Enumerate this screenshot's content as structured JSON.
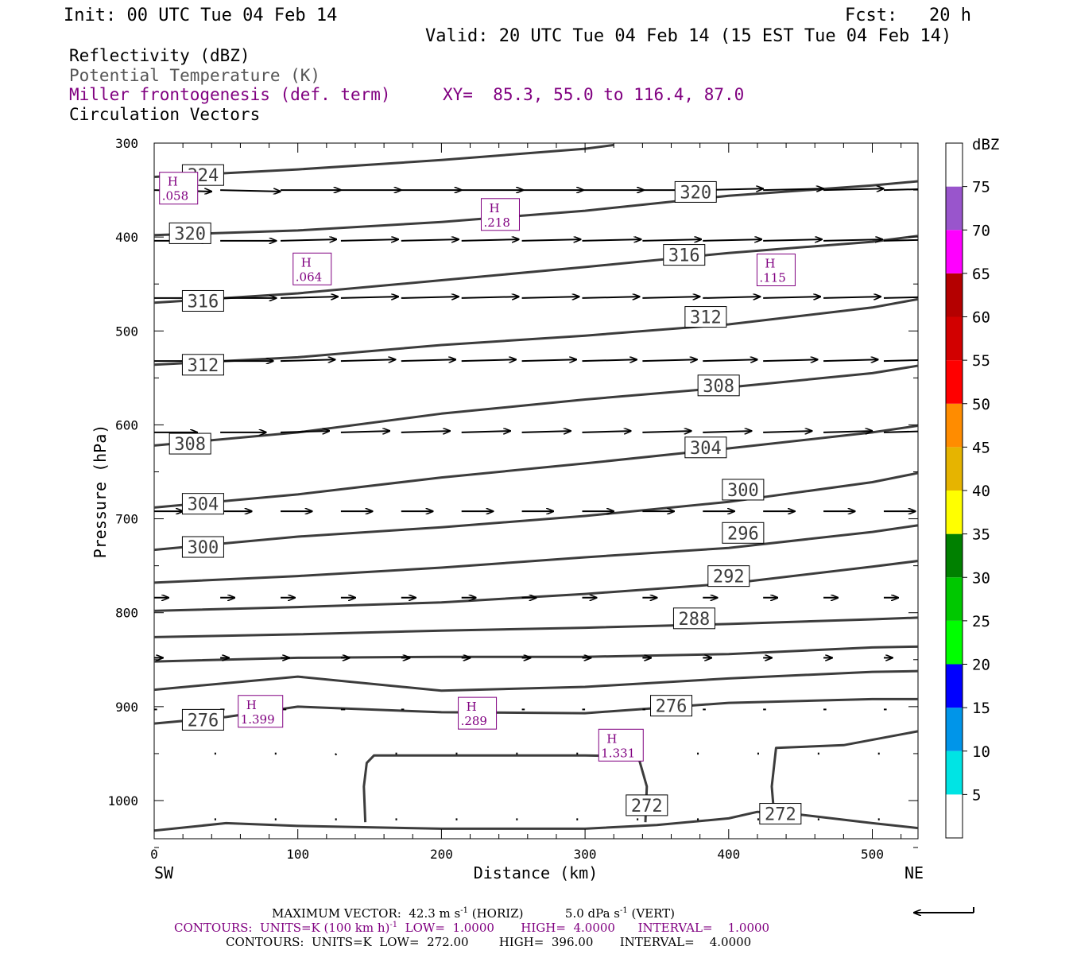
{
  "header": {
    "init": "Init: 00 UTC Tue 04 Feb 14",
    "fcst": "Fcst:   20 h",
    "valid": "Valid: 20 UTC Tue 04 Feb 14 (15 EST Tue 04 Feb 14)",
    "field1": "Reflectivity (dBZ)",
    "field2": "Potential Temperature (K)",
    "field3": "Miller frontogenesis (def. term)",
    "xy": "XY=  85.3, 55.0 to 116.4, 87.0",
    "field4": "Circulation Vectors"
  },
  "colors": {
    "purple": "#800080",
    "gray_text": "#555555",
    "theta_line": "#3c3c3c"
  },
  "chart_data": {
    "type": "line",
    "title": "",
    "xlabel": "Distance (km)",
    "ylabel": "Pressure (hPa)",
    "xlim": [
      0,
      536
    ],
    "ylim": [
      1040,
      300
    ],
    "x_ticks": [
      0,
      100,
      200,
      300,
      400,
      500
    ],
    "y_ticks": [
      300,
      400,
      500,
      600,
      700,
      800,
      900,
      1000
    ],
    "x_end_labels": {
      "left": "SW",
      "right": "NE"
    },
    "series": [
      {
        "theta": 324,
        "points": [
          [
            0,
            336
          ],
          [
            100,
            328
          ],
          [
            200,
            318
          ],
          [
            300,
            306
          ],
          [
            320,
            302
          ]
        ]
      },
      {
        "theta": 320,
        "points": [
          [
            0,
            398
          ],
          [
            100,
            393
          ],
          [
            200,
            384
          ],
          [
            300,
            372
          ],
          [
            400,
            356
          ],
          [
            500,
            345
          ],
          [
            536,
            340
          ]
        ]
      },
      {
        "theta": 316,
        "points": [
          [
            0,
            470
          ],
          [
            100,
            460
          ],
          [
            200,
            446
          ],
          [
            300,
            432
          ],
          [
            400,
            417
          ],
          [
            500,
            405
          ],
          [
            536,
            398
          ]
        ]
      },
      {
        "theta": 312,
        "points": [
          [
            0,
            536
          ],
          [
            100,
            528
          ],
          [
            200,
            515
          ],
          [
            300,
            505
          ],
          [
            400,
            493
          ],
          [
            500,
            475
          ],
          [
            536,
            465
          ]
        ]
      },
      {
        "theta": 308,
        "points": [
          [
            0,
            622
          ],
          [
            100,
            608
          ],
          [
            200,
            588
          ],
          [
            300,
            573
          ],
          [
            400,
            560
          ],
          [
            500,
            545
          ],
          [
            536,
            536
          ]
        ]
      },
      {
        "theta": 304,
        "points": [
          [
            0,
            688
          ],
          [
            100,
            674
          ],
          [
            200,
            656
          ],
          [
            300,
            641
          ],
          [
            400,
            625
          ],
          [
            500,
            608
          ],
          [
            536,
            600
          ]
        ]
      },
      {
        "theta": 300,
        "points": [
          [
            0,
            733
          ],
          [
            100,
            719
          ],
          [
            200,
            709
          ],
          [
            300,
            697
          ],
          [
            400,
            682
          ],
          [
            500,
            661
          ],
          [
            536,
            650
          ]
        ]
      },
      {
        "theta": 296,
        "points": [
          [
            0,
            768
          ],
          [
            100,
            761
          ],
          [
            200,
            752
          ],
          [
            300,
            741
          ],
          [
            400,
            731
          ],
          [
            500,
            714
          ],
          [
            536,
            706
          ]
        ]
      },
      {
        "theta": 292,
        "points": [
          [
            0,
            798
          ],
          [
            100,
            794
          ],
          [
            200,
            789
          ],
          [
            300,
            780
          ],
          [
            400,
            769
          ],
          [
            500,
            751
          ],
          [
            536,
            744
          ]
        ]
      },
      {
        "theta": 288,
        "points": [
          [
            0,
            826
          ],
          [
            100,
            823
          ],
          [
            200,
            819
          ],
          [
            300,
            816
          ],
          [
            400,
            812
          ],
          [
            500,
            807
          ],
          [
            536,
            805
          ]
        ]
      },
      {
        "theta": 284,
        "points": [
          [
            0,
            852
          ],
          [
            100,
            848
          ],
          [
            200,
            847
          ],
          [
            300,
            847
          ],
          [
            400,
            844
          ],
          [
            500,
            837
          ],
          [
            536,
            836
          ]
        ]
      },
      {
        "theta": 280,
        "points": [
          [
            0,
            882
          ],
          [
            100,
            868
          ],
          [
            200,
            883
          ],
          [
            300,
            879
          ],
          [
            400,
            870
          ],
          [
            500,
            863
          ],
          [
            536,
            862
          ]
        ]
      },
      {
        "theta": 276,
        "points": [
          [
            0,
            918
          ],
          [
            50,
            911
          ],
          [
            100,
            900
          ],
          [
            200,
            906
          ],
          [
            300,
            907
          ],
          [
            400,
            896
          ],
          [
            500,
            892
          ],
          [
            536,
            892
          ]
        ]
      },
      {
        "theta": 272,
        "points": [
          [
            147,
            1023
          ],
          [
            146,
            985
          ],
          [
            148,
            960
          ],
          [
            153,
            952
          ],
          [
            200,
            952
          ],
          [
            300,
            952
          ],
          [
            337,
            953
          ],
          [
            343,
            985
          ],
          [
            342,
            1023
          ]
        ]
      },
      {
        "theta": 272,
        "points": [
          [
            432,
            1022
          ],
          [
            430,
            985
          ],
          [
            433,
            944
          ],
          [
            480,
            941
          ],
          [
            536,
            925
          ]
        ]
      },
      {
        "theta": 268,
        "points": [
          [
            0,
            1032
          ],
          [
            50,
            1024
          ],
          [
            100,
            1027
          ],
          [
            200,
            1030
          ],
          [
            300,
            1030
          ],
          [
            350,
            1026
          ],
          [
            400,
            1019
          ],
          [
            420,
            1012
          ],
          [
            450,
            1015
          ],
          [
            500,
            1024
          ],
          [
            536,
            1030
          ]
        ]
      }
    ],
    "theta_labels": [
      {
        "text": "324",
        "x": 34,
        "p": 334
      },
      {
        "text": "320",
        "x": 25,
        "p": 396
      },
      {
        "text": "320",
        "x": 377,
        "p": 352
      },
      {
        "text": "316",
        "x": 34,
        "p": 468
      },
      {
        "text": "316",
        "x": 369,
        "p": 419
      },
      {
        "text": "312",
        "x": 34,
        "p": 536
      },
      {
        "text": "312",
        "x": 384,
        "p": 485
      },
      {
        "text": "308",
        "x": 25,
        "p": 620
      },
      {
        "text": "308",
        "x": 393,
        "p": 558
      },
      {
        "text": "304",
        "x": 34,
        "p": 684
      },
      {
        "text": "304",
        "x": 384,
        "p": 624
      },
      {
        "text": "300",
        "x": 34,
        "p": 730
      },
      {
        "text": "300",
        "x": 410,
        "p": 669
      },
      {
        "text": "296",
        "x": 410,
        "p": 715
      },
      {
        "text": "292",
        "x": 400,
        "p": 761
      },
      {
        "text": "288",
        "x": 376,
        "p": 806
      },
      {
        "text": "276",
        "x": 34,
        "p": 914
      },
      {
        "text": "276",
        "x": 360,
        "p": 899
      },
      {
        "text": "272",
        "x": 343,
        "p": 1005
      },
      {
        "text": "272",
        "x": 436,
        "p": 1014
      }
    ],
    "frontogenesis_maxima": [
      {
        "label": "H",
        "value": ".058",
        "x": 17,
        "p": 348
      },
      {
        "label": "H",
        "value": ".218",
        "x": 241,
        "p": 376
      },
      {
        "label": "H",
        "value": ".064",
        "x": 110,
        "p": 434
      },
      {
        "label": "H",
        "value": ".115",
        "x": 433,
        "p": 435
      },
      {
        "label": "H",
        "value": "1.399",
        "x": 74,
        "p": 905
      },
      {
        "label": "H",
        "value": ".289",
        "x": 225,
        "p": 907
      },
      {
        "label": "H",
        "value": "1.331",
        "x": 325,
        "p": 941
      }
    ],
    "vectors": [
      {
        "p": 350,
        "x0": [
          0,
          46,
          88,
          130,
          172,
          214,
          256,
          298,
          340,
          382,
          424,
          466,
          508
        ],
        "u": [
          40,
          42,
          42,
          42,
          42,
          43,
          43,
          43,
          42,
          42,
          42,
          42,
          42
        ],
        "v": [
          -1,
          -1,
          0,
          0,
          0,
          0,
          0,
          0,
          0,
          1,
          1,
          1,
          1
        ]
      },
      {
        "p": 404,
        "x0": [
          0,
          46,
          88,
          130,
          172,
          214,
          256,
          298,
          340,
          382,
          424,
          466,
          508
        ],
        "u": [
          38,
          39,
          39,
          40,
          40,
          40,
          41,
          41,
          41,
          41,
          41,
          41,
          41
        ],
        "v": [
          0,
          0,
          1,
          1,
          1,
          1,
          1,
          1,
          1,
          1,
          1,
          1,
          1
        ]
      },
      {
        "p": 465,
        "x0": [
          0,
          46,
          88,
          130,
          172,
          214,
          256,
          298,
          340,
          382,
          424,
          466,
          508
        ],
        "u": [
          38,
          39,
          40,
          40,
          40,
          40,
          40,
          40,
          40,
          40,
          40,
          40,
          40
        ],
        "v": [
          0,
          0,
          1,
          1,
          1,
          1,
          1,
          1,
          1,
          1,
          1,
          1,
          1
        ]
      },
      {
        "p": 532,
        "x0": [
          0,
          46,
          88,
          130,
          172,
          214,
          256,
          298,
          340,
          382,
          424,
          466,
          508
        ],
        "u": [
          36,
          37,
          38,
          38,
          38,
          38,
          38,
          38,
          38,
          38,
          38,
          38,
          38
        ],
        "v": [
          0,
          0,
          1,
          1,
          1,
          1,
          1,
          1,
          1,
          1,
          1,
          1,
          1
        ]
      },
      {
        "p": 608,
        "x0": [
          0,
          46,
          88,
          130,
          172,
          214,
          256,
          298,
          340,
          382,
          424,
          466,
          508
        ],
        "u": [
          30,
          32,
          34,
          34,
          34,
          34,
          34,
          34,
          34,
          34,
          34,
          34,
          34
        ],
        "v": [
          0,
          0,
          1,
          1,
          1,
          1,
          1,
          1,
          1,
          1,
          1,
          1,
          1
        ]
      },
      {
        "p": 692,
        "x0": [
          0,
          46,
          88,
          130,
          172,
          214,
          256,
          298,
          340,
          382,
          424,
          466,
          508
        ],
        "u": [
          20,
          22,
          22,
          22,
          22,
          22,
          22,
          22,
          22,
          22,
          22,
          22,
          22
        ],
        "v": [
          0,
          0,
          0,
          0,
          0,
          0,
          0,
          0,
          0,
          0,
          0,
          0,
          0
        ]
      },
      {
        "p": 784,
        "x0": [
          0,
          46,
          88,
          130,
          172,
          214,
          256,
          298,
          340,
          382,
          424,
          466,
          508
        ],
        "u": [
          10,
          10,
          10,
          10,
          10,
          10,
          10,
          10,
          10,
          10,
          10,
          10,
          10
        ],
        "v": [
          0,
          0,
          0,
          0,
          0,
          0,
          0,
          0,
          0,
          0,
          0,
          0,
          0
        ]
      },
      {
        "p": 848,
        "x0": [
          0,
          46,
          88,
          130,
          172,
          214,
          256,
          298,
          340,
          382,
          424,
          466,
          508
        ],
        "u": [
          6,
          6,
          6,
          6,
          6,
          6,
          6,
          6,
          6,
          6,
          6,
          6,
          6
        ],
        "v": [
          0,
          0,
          0,
          0,
          0,
          0,
          0,
          0,
          0,
          0,
          0,
          0,
          0
        ]
      },
      {
        "p": 903,
        "x0": [
          0,
          46,
          88,
          130,
          172,
          214,
          256,
          298,
          340,
          382,
          424,
          466,
          508
        ],
        "u": [
          2,
          3,
          4,
          3,
          2,
          2,
          2,
          2,
          2,
          2,
          2,
          2,
          2
        ],
        "v": [
          0,
          0,
          0,
          0,
          0,
          0,
          0,
          0,
          0,
          0,
          0,
          0,
          0
        ]
      },
      {
        "p": 950,
        "x0": [
          42,
          84,
          126,
          168,
          210,
          252,
          294,
          336,
          378,
          420,
          462,
          504
        ],
        "u": [
          1,
          1,
          1,
          1,
          1,
          1,
          1,
          1,
          1,
          1,
          1,
          1
        ],
        "v": [
          0,
          0,
          -1,
          0,
          0,
          0,
          0,
          0,
          0,
          0,
          0,
          0
        ]
      },
      {
        "p": 1020,
        "x0": [
          42,
          84,
          126,
          168,
          210,
          252,
          294,
          336,
          378,
          420,
          462,
          504
        ],
        "u": [
          1,
          1,
          1,
          1,
          1,
          1,
          1,
          1,
          1,
          1,
          1,
          1
        ],
        "v": [
          0,
          0,
          0,
          0,
          0,
          0,
          0,
          0,
          0,
          0,
          0,
          0
        ]
      }
    ],
    "colorbar": {
      "title": "dBZ",
      "labels": [
        "5",
        "10",
        "15",
        "20",
        "25",
        "30",
        "35",
        "40",
        "45",
        "50",
        "55",
        "60",
        "65",
        "70",
        "75"
      ],
      "colors": [
        "#ffffff",
        "#00e4e4",
        "#0095e9",
        "#0000ff",
        "#00ff00",
        "#00c800",
        "#008000",
        "#ffff00",
        "#e6b400",
        "#ff8c00",
        "#ff0000",
        "#d20000",
        "#b40000",
        "#ff00ff",
        "#9955cc",
        "#ffffff"
      ]
    }
  },
  "footer": {
    "line1": "MAXIMUM VECTOR:  42.3 m s",
    "line1_sup": "-1",
    "line1_b": " (HORIZ)           5.0 dPa s",
    "line1_sup2": "-1",
    "line1_c": " (VERT)",
    "line2": "CONTOURS:  UNITS=K (100 km h)",
    "line2_sup": "-1",
    "line2_b": "  LOW=  1.0000       HIGH=  4.0000      INTERVAL=    1.0000",
    "line3": "CONTOURS:  UNITS=K  LOW=  272.00        HIGH=  396.00       INTERVAL=    4.0000"
  }
}
